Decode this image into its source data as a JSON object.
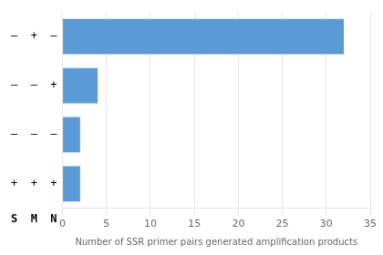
{
  "chart_data": {
    "type": "bar",
    "orientation": "horizontal",
    "categories": [
      "–  +  –",
      "–  –  +",
      "–  –  –",
      "+  +  +"
    ],
    "ylabel": "S  M  N",
    "values": [
      32,
      4,
      2,
      2
    ],
    "color": "#5B9BD5",
    "xlabel": "Number of SSR primer pairs generated amplification products",
    "xlim": [
      0,
      35
    ],
    "xticks": [
      0,
      5,
      10,
      15,
      20,
      25,
      30,
      35
    ],
    "grid": true
  }
}
